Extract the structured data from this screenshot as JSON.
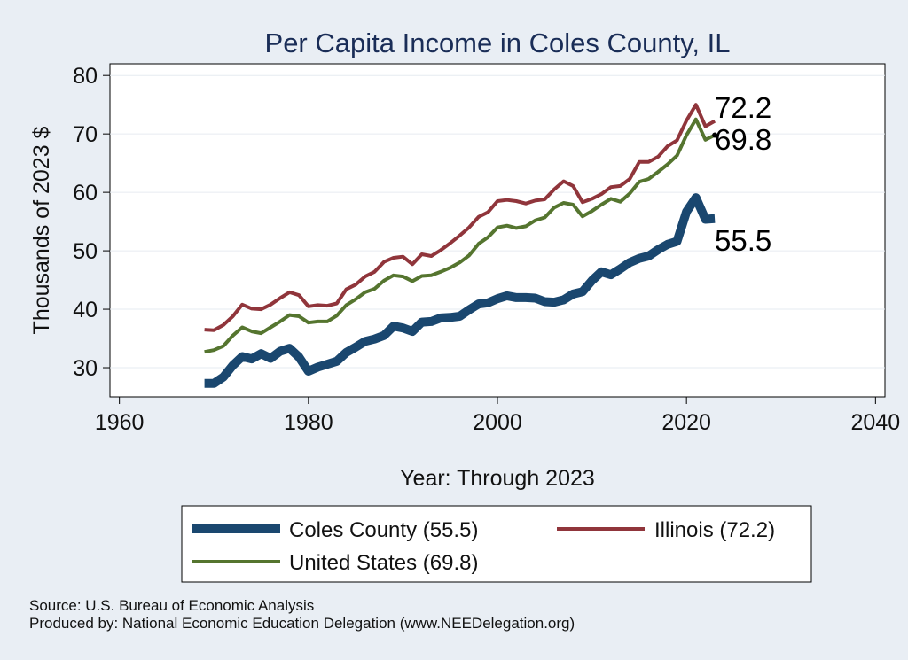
{
  "chart_data": {
    "type": "line",
    "title": "Per Capita Income in Coles County, IL",
    "xlabel": "Year: Through 2023",
    "ylabel": "Thousands of 2023 $",
    "xlim": [
      1959,
      2041
    ],
    "ylim": [
      25,
      82
    ],
    "xticks": [
      1960,
      1980,
      2000,
      2020,
      2040
    ],
    "yticks": [
      30,
      40,
      50,
      60,
      70,
      80
    ],
    "grid": true,
    "x": [
      1969,
      1970,
      1971,
      1972,
      1973,
      1974,
      1975,
      1976,
      1977,
      1978,
      1979,
      1980,
      1981,
      1982,
      1983,
      1984,
      1985,
      1986,
      1987,
      1988,
      1989,
      1990,
      1991,
      1992,
      1993,
      1994,
      1995,
      1996,
      1997,
      1998,
      1999,
      2000,
      2001,
      2002,
      2003,
      2004,
      2005,
      2006,
      2007,
      2008,
      2009,
      2010,
      2011,
      2012,
      2013,
      2014,
      2015,
      2016,
      2017,
      2018,
      2019,
      2020,
      2021,
      2022,
      2023
    ],
    "series": [
      {
        "name": "Coles County (55.5)",
        "key": "coles",
        "color": "#1a476f",
        "width": 10,
        "end_label": "55.5",
        "values": [
          27.3,
          27.3,
          28.4,
          30.4,
          31.9,
          31.5,
          32.4,
          31.6,
          32.8,
          33.3,
          31.8,
          29.4,
          30.1,
          30.6,
          31.1,
          32.6,
          33.5,
          34.5,
          34.9,
          35.5,
          37.1,
          36.8,
          36.2,
          37.8,
          37.9,
          38.5,
          38.6,
          38.8,
          39.9,
          40.9,
          41.1,
          41.8,
          42.3,
          42.0,
          42.0,
          41.9,
          41.3,
          41.2,
          41.6,
          42.6,
          43.0,
          44.9,
          46.4,
          45.9,
          46.9,
          48.0,
          48.7,
          49.1,
          50.2,
          51.1,
          51.6,
          56.7,
          59.1,
          55.4,
          55.5
        ]
      },
      {
        "name": "Illinois (72.2)",
        "key": "illinois",
        "color": "#90353b",
        "width": 4,
        "end_label": "72.2",
        "values": [
          36.5,
          36.4,
          37.3,
          38.8,
          40.8,
          40.1,
          40.0,
          40.8,
          41.9,
          42.9,
          42.4,
          40.5,
          40.7,
          40.6,
          41.0,
          43.4,
          44.2,
          45.6,
          46.4,
          48.1,
          48.8,
          49.0,
          47.7,
          49.4,
          49.1,
          50.1,
          51.3,
          52.6,
          54.0,
          55.8,
          56.6,
          58.5,
          58.7,
          58.5,
          58.1,
          58.6,
          58.8,
          60.5,
          61.9,
          61.1,
          58.3,
          58.9,
          59.7,
          60.9,
          61.1,
          62.3,
          65.2,
          65.2,
          66.1,
          67.9,
          68.9,
          72.3,
          75.0,
          71.3,
          72.2
        ]
      },
      {
        "name": "United States (69.8)",
        "key": "us",
        "color": "#55752f",
        "width": 4,
        "end_label": "69.8",
        "values": [
          32.7,
          33.0,
          33.7,
          35.5,
          36.9,
          36.2,
          35.9,
          36.9,
          37.9,
          39.0,
          38.8,
          37.7,
          37.9,
          37.9,
          38.9,
          40.7,
          41.7,
          42.9,
          43.5,
          44.9,
          45.8,
          45.6,
          44.8,
          45.7,
          45.8,
          46.4,
          47.1,
          48.0,
          49.2,
          51.2,
          52.3,
          54.0,
          54.3,
          53.9,
          54.2,
          55.2,
          55.7,
          57.4,
          58.2,
          57.9,
          55.9,
          56.8,
          57.9,
          58.9,
          58.4,
          59.8,
          61.8,
          62.3,
          63.5,
          64.8,
          66.3,
          69.8,
          72.5,
          69.0,
          69.8
        ]
      }
    ],
    "legend": {
      "placement": "bottom",
      "items": [
        "Coles County (55.5)",
        "Illinois (72.2)",
        "United States (69.8)"
      ]
    }
  },
  "footer": {
    "source": "Source: U.S. Bureau of Economic Analysis",
    "produced": "Produced by: National Economic Education Delegation (www.NEEDelegation.org)"
  },
  "colors": {
    "background": "#e9eef4",
    "plot_background": "#ffffff",
    "title": "#1a2d57"
  }
}
